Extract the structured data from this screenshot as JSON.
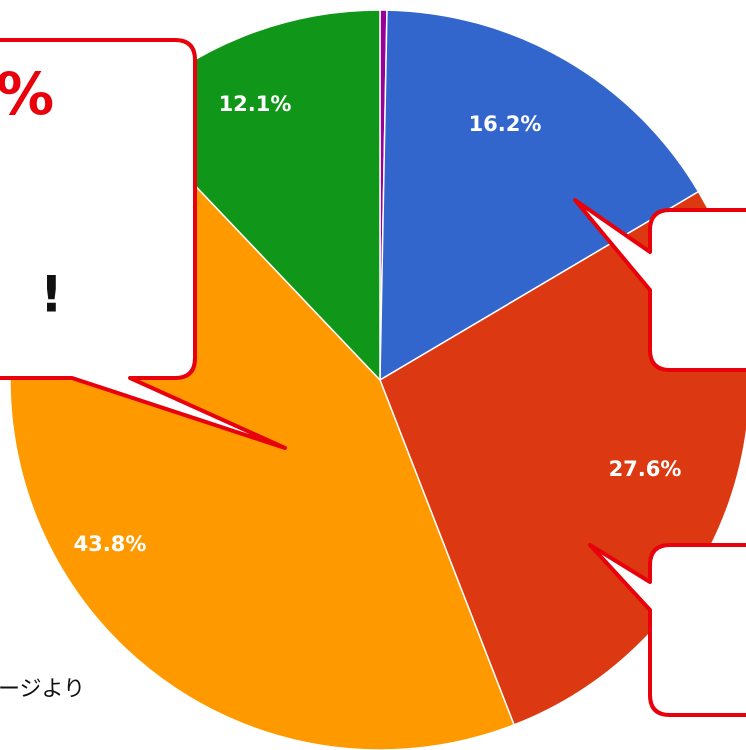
{
  "chart_data": {
    "type": "pie",
    "values": [
      0.3,
      16.2,
      27.6,
      43.8,
      12.1
    ],
    "value_labels": [
      null,
      "16.2%",
      "27.6%",
      "43.8%",
      "12.1%"
    ],
    "colors": [
      "#990099",
      "#3366cc",
      "#dc3912",
      "#ff9900",
      "#109618"
    ],
    "annotations": [
      "%",
      "!",
      "ージより"
    ]
  }
}
